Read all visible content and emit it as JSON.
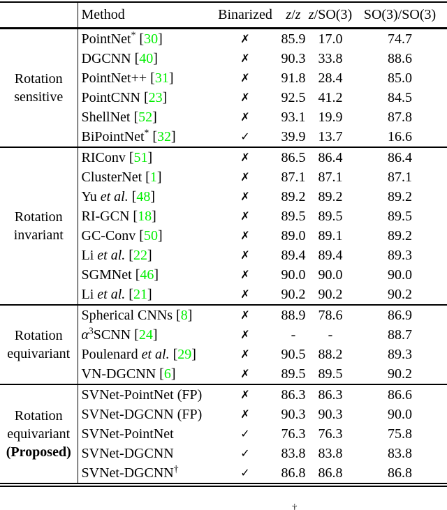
{
  "colors": {
    "citation": "#00ee00",
    "rule": "#000000",
    "text": "#000000"
  },
  "footnote_marker": "†",
  "icons": {
    "check": "✓",
    "cross": "✗"
  },
  "table": {
    "headers": {
      "method": "Method",
      "binarized": "Binarized",
      "z": "z",
      "slash": "/",
      "so3": "SO(3)"
    },
    "groups": [
      {
        "label_lines": [
          {
            "t": "Rotation"
          },
          {
            "t": "sensitive"
          }
        ],
        "rows": [
          {
            "n1": "PointNet",
            "i": "",
            "sup": "*",
            "n2": "",
            "cite": "30",
            "binarized": "no",
            "values": [
              "85.9",
              "17.0",
              "74.7"
            ]
          },
          {
            "n1": "DGCNN",
            "i": "",
            "sup": "",
            "n2": "",
            "cite": "40",
            "binarized": "no",
            "values": [
              "90.3",
              "33.8",
              "88.6"
            ]
          },
          {
            "n1": "PointNet++",
            "i": "",
            "sup": "",
            "n2": "",
            "cite": "31",
            "binarized": "no",
            "values": [
              "91.8",
              "28.4",
              "85.0"
            ]
          },
          {
            "n1": "PointCNN",
            "i": "",
            "sup": "",
            "n2": "",
            "cite": "23",
            "binarized": "no",
            "values": [
              "92.5",
              "41.2",
              "84.5"
            ]
          },
          {
            "n1": "ShellNet",
            "i": "",
            "sup": "",
            "n2": "",
            "cite": "52",
            "binarized": "no",
            "values": [
              "93.1",
              "19.9",
              "87.8"
            ]
          },
          {
            "n1": "BiPointNet",
            "i": "",
            "sup": "*",
            "n2": "",
            "cite": "32",
            "binarized": "yes",
            "values": [
              "39.9",
              "13.7",
              "16.6"
            ]
          }
        ]
      },
      {
        "label_lines": [
          {
            "t": "Rotation"
          },
          {
            "t": "invariant"
          }
        ],
        "rows": [
          {
            "n1": "RIConv",
            "i": "",
            "sup": "",
            "n2": "",
            "cite": "51",
            "binarized": "no",
            "values": [
              "86.5",
              "86.4",
              "86.4"
            ]
          },
          {
            "n1": "ClusterNet",
            "i": "",
            "sup": "",
            "n2": "",
            "cite": "1",
            "binarized": "no",
            "values": [
              "87.1",
              "87.1",
              "87.1"
            ]
          },
          {
            "n1": "Yu ",
            "i": "et al.",
            "sup": "",
            "n2": "",
            "cite": "48",
            "binarized": "no",
            "values": [
              "89.2",
              "89.2",
              "89.2"
            ]
          },
          {
            "n1": "RI-GCN",
            "i": "",
            "sup": "",
            "n2": "",
            "cite": "18",
            "binarized": "no",
            "values": [
              "89.5",
              "89.5",
              "89.5"
            ]
          },
          {
            "n1": "GC-Conv",
            "i": "",
            "sup": "",
            "n2": "",
            "cite": "50",
            "binarized": "no",
            "values": [
              "89.0",
              "89.1",
              "89.2"
            ]
          },
          {
            "n1": "Li ",
            "i": "et al.",
            "sup": "",
            "n2": "",
            "cite": "22",
            "binarized": "no",
            "values": [
              "89.4",
              "89.4",
              "89.3"
            ]
          },
          {
            "n1": "SGMNet",
            "i": "",
            "sup": "",
            "n2": "",
            "cite": "46",
            "binarized": "no",
            "values": [
              "90.0",
              "90.0",
              "90.0"
            ]
          },
          {
            "n1": "Li ",
            "i": "et al.",
            "sup": "",
            "n2": "",
            "cite": "21",
            "binarized": "no",
            "values": [
              "90.2",
              "90.2",
              "90.2"
            ]
          }
        ]
      },
      {
        "label_lines": [
          {
            "t": "Rotation"
          },
          {
            "t": "equivariant"
          }
        ],
        "rows": [
          {
            "n1": "Spherical CNNs",
            "i": "",
            "sup": "",
            "n2": "",
            "cite": "8",
            "binarized": "no",
            "values": [
              "88.9",
              "78.6",
              "86.9"
            ]
          },
          {
            "n1": "",
            "i": "α",
            "sup": "3",
            "n2": "SCNN",
            "cite": "24",
            "binarized": "no",
            "values": [
              "-",
              "-",
              "88.7"
            ]
          },
          {
            "n1": "Poulenard ",
            "i": "et al.",
            "sup": "",
            "n2": "",
            "cite": "29",
            "binarized": "no",
            "values": [
              "90.5",
              "88.2",
              "89.3"
            ]
          },
          {
            "n1": "VN-DGCNN",
            "i": "",
            "sup": "",
            "n2": "",
            "cite": "6",
            "binarized": "no",
            "values": [
              "89.5",
              "89.5",
              "90.2"
            ]
          }
        ]
      },
      {
        "label_lines": [
          {
            "t": "Rotation"
          },
          {
            "t": "equivariant"
          },
          {
            "t": "(Proposed)",
            "bold": true
          }
        ],
        "rows": [
          {
            "n1": "SVNet-PointNet (FP)",
            "i": "",
            "sup": "",
            "n2": "",
            "cite": null,
            "binarized": "no",
            "values": [
              "86.3",
              "86.3",
              "86.6"
            ]
          },
          {
            "n1": "SVNet-DGCNN (FP)",
            "i": "",
            "sup": "",
            "n2": "",
            "cite": null,
            "binarized": "no",
            "values": [
              "90.3",
              "90.3",
              "90.0"
            ]
          },
          {
            "n1": "SVNet-PointNet",
            "i": "",
            "sup": "",
            "n2": "",
            "cite": null,
            "binarized": "yes",
            "values": [
              "76.3",
              "76.3",
              "75.8"
            ]
          },
          {
            "n1": "SVNet-DGCNN",
            "i": "",
            "sup": "",
            "n2": "",
            "cite": null,
            "binarized": "yes",
            "values": [
              "83.8",
              "83.8",
              "83.8"
            ]
          },
          {
            "n1": "SVNet-DGCNN",
            "i": "",
            "sup": "†",
            "n2": "",
            "cite": null,
            "binarized": "yes",
            "values": [
              "86.8",
              "86.8",
              "86.8"
            ]
          }
        ]
      }
    ]
  }
}
